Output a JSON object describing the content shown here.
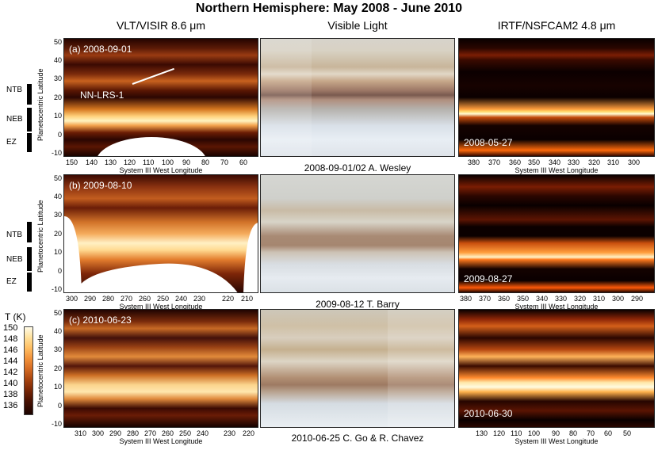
{
  "title": "Northern Hemisphere: May 2008 - June 2010",
  "columns": [
    "VLT/VISIR 8.6 μm",
    "Visible Light",
    "IRTF/NSFCAM2 4.8 μm"
  ],
  "y_axis_label": "Planetocentric Latitude",
  "y_ticks": [
    "50",
    "40",
    "30",
    "20",
    "10",
    "0",
    "-10"
  ],
  "x_axis_label": "System III West Longitude",
  "rows": [
    {
      "visir_tag": "(a) 2008-09-01",
      "annotation": "NN-LRS-1",
      "visir_x_ticks": [
        "150",
        "140",
        "130",
        "120",
        "110",
        "100",
        "90",
        "80",
        "70",
        "60"
      ],
      "visible_caption": "2008-09-01/02 A. Wesley",
      "nsfcam_tag": "2008-05-27",
      "nsfcam_x_ticks": [
        "380",
        "370",
        "360",
        "350",
        "340",
        "330",
        "320",
        "310",
        "300"
      ]
    },
    {
      "visir_tag": "(b) 2009-08-10",
      "visir_x_ticks": [
        "300",
        "290",
        "280",
        "270",
        "260",
        "250",
        "240",
        "230",
        "220",
        "210"
      ],
      "visible_caption": "2009-08-12 T. Barry",
      "nsfcam_tag": "2009-08-27",
      "nsfcam_x_ticks": [
        "380",
        "370",
        "360",
        "350",
        "340",
        "330",
        "320",
        "310",
        "300",
        "290"
      ]
    },
    {
      "visir_tag": "(c) 2010-06-23",
      "visir_x_ticks": [
        "310",
        "300",
        "290",
        "280",
        "270",
        "260",
        "250",
        "240",
        "230",
        "220"
      ],
      "visible_caption": "2010-06-25 C. Go & R. Chavez",
      "nsfcam_tag": "2010-06-30",
      "nsfcam_x_ticks": [
        "130",
        "120",
        "110",
        "100",
        "90",
        "80",
        "70",
        "60",
        "50"
      ]
    }
  ],
  "belts": [
    "NTB",
    "NEB",
    "EZ"
  ],
  "colorbar": {
    "label": "T (K)",
    "ticks": [
      "150",
      "148",
      "146",
      "144",
      "142",
      "140",
      "138",
      "136"
    ]
  }
}
